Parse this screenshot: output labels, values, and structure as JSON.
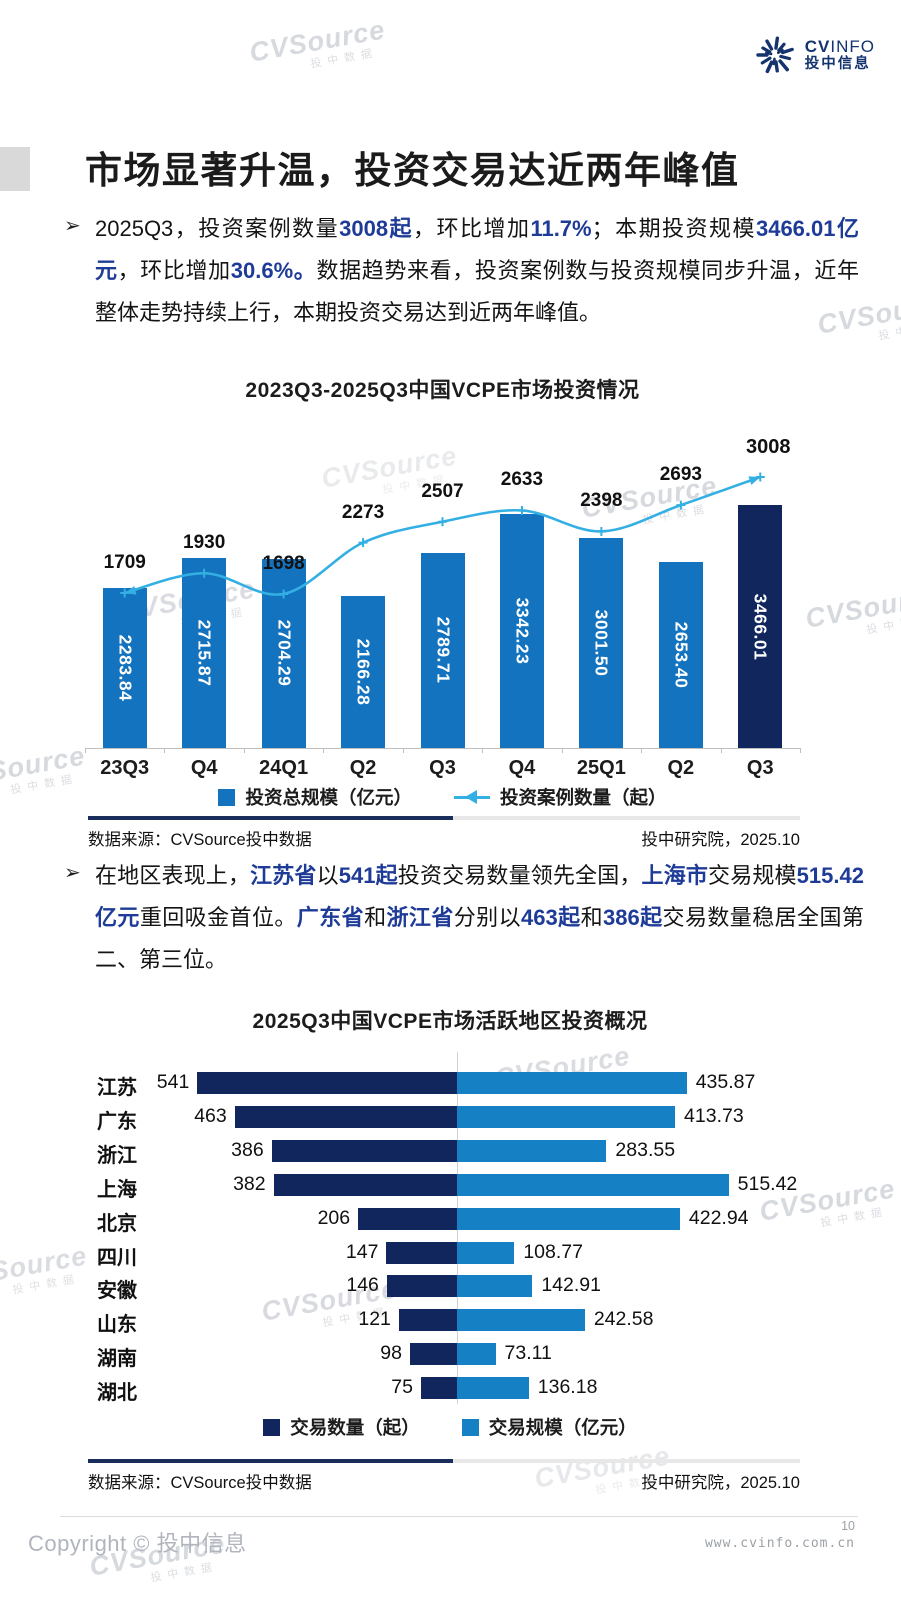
{
  "logo": {
    "en_bold": "CV",
    "en_light": "INFO",
    "cn": "投中信息"
  },
  "watermark": {
    "main": "CVSource",
    "sub": "投中数据"
  },
  "page": {
    "title": "市场显著升温，投资交易达近两年峰值",
    "bullet_marker": "➢",
    "bullets": [
      {
        "segments": [
          {
            "t": "2025Q3，投资案例数量"
          },
          {
            "t": "3008起",
            "b": true
          },
          {
            "t": "，环比增加"
          },
          {
            "t": "11.7%",
            "b": true
          },
          {
            "t": "；本期投资规模"
          },
          {
            "t": "3466.01亿元",
            "b": true
          },
          {
            "t": "，环比增加"
          },
          {
            "t": "30.6%。",
            "b": true
          },
          {
            "t": "数据趋势来看，投资案例数与投资规模同步升温，近年整体走势持续上行，本期投资交易达到近两年峰值。"
          }
        ]
      },
      {
        "segments": [
          {
            "t": "在地区表现上，"
          },
          {
            "t": "江苏省",
            "b": true
          },
          {
            "t": "以"
          },
          {
            "t": "541起",
            "b": true
          },
          {
            "t": "投资交易数量领先全国，"
          },
          {
            "t": "上海市",
            "b": true
          },
          {
            "t": "交易规模"
          },
          {
            "t": "515.42亿元",
            "b": true
          },
          {
            "t": "重回吸金首位。"
          },
          {
            "t": "广东省",
            "b": true
          },
          {
            "t": "和"
          },
          {
            "t": "浙江省",
            "b": true
          },
          {
            "t": "分别以"
          },
          {
            "t": "463起",
            "b": true
          },
          {
            "t": "和"
          },
          {
            "t": "386起",
            "b": true
          },
          {
            "t": "交易数量稳居全国第二、第三位。"
          }
        ]
      }
    ],
    "copyright": "Copyright © 投中信息",
    "page_number": "10",
    "website": "www.cvinfo.com.cn"
  },
  "colors": {
    "bar_blue": "#1373BE",
    "bar_navy": "#12265E",
    "line_blue": "#33AFE3",
    "light_blue": "#1680C4",
    "divider_navy": "#1A2E5C"
  },
  "chart_data": [
    {
      "type": "bar",
      "subtype": "combo-bar-line",
      "title": "2023Q3-2025Q3中国VCPE市场投资情况",
      "categories": [
        "23Q3",
        "Q4",
        "24Q1",
        "Q2",
        "Q3",
        "Q4",
        "25Q1",
        "Q2",
        "Q3"
      ],
      "series": [
        {
          "name": "投资总规模（亿元）",
          "type": "bar",
          "values": [
            2283.84,
            2715.87,
            2704.29,
            2166.28,
            2789.71,
            3342.23,
            3001.5,
            2653.4,
            3466.01
          ]
        },
        {
          "name": "投资案例数量（起）",
          "type": "line",
          "values": [
            1709,
            1930,
            1698,
            2273,
            2507,
            2633,
            2398,
            2693,
            3008
          ]
        }
      ],
      "highlight_last_bar": true,
      "legend_position": "bottom",
      "source_left": "数据来源：CVSource投中数据",
      "source_right": "投中研究院，2025.10"
    },
    {
      "type": "bar",
      "subtype": "diverging-horizontal-bar",
      "title": "2025Q3中国VCPE市场活跃地区投资概况",
      "rows": [
        {
          "region": "江苏",
          "count": 541,
          "amount": 435.87
        },
        {
          "region": "广东",
          "count": 463,
          "amount": 413.73
        },
        {
          "region": "浙江",
          "count": 386,
          "amount": 283.55
        },
        {
          "region": "上海",
          "count": 382,
          "amount": 515.42
        },
        {
          "region": "北京",
          "count": 206,
          "amount": 422.94
        },
        {
          "region": "四川",
          "count": 147,
          "amount": 108.77
        },
        {
          "region": "安徽",
          "count": 146,
          "amount": 142.91
        },
        {
          "region": "山东",
          "count": 121,
          "amount": 242.58
        },
        {
          "region": "湖南",
          "count": 98,
          "amount": 73.11
        },
        {
          "region": "湖北",
          "count": 75,
          "amount": 136.18
        }
      ],
      "legend": [
        "交易数量（起）",
        "交易规模（亿元）"
      ],
      "legend_position": "bottom",
      "source_left": "数据来源：CVSource投中数据",
      "source_right": "投中研究院，2025.10"
    }
  ]
}
